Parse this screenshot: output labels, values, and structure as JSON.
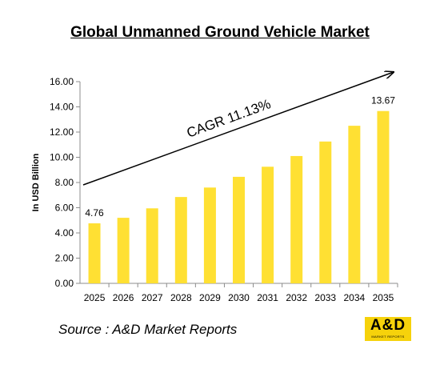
{
  "chart_data": {
    "type": "bar",
    "title": "Global Unmanned Ground Vehicle Market",
    "ylabel": "In USD Billion",
    "xlabel": "",
    "categories": [
      "2025",
      "2026",
      "2027",
      "2028",
      "2029",
      "2030",
      "2031",
      "2032",
      "2033",
      "2034",
      "2035"
    ],
    "values": [
      4.76,
      5.2,
      5.95,
      6.85,
      7.6,
      8.45,
      9.25,
      10.1,
      11.25,
      12.5,
      13.67
    ],
    "data_labels": {
      "0": "4.76",
      "10": "13.67"
    },
    "yticks": [
      "0.00",
      "2.00",
      "4.00",
      "6.00",
      "8.00",
      "10.00",
      "12.00",
      "14.00",
      "16.00"
    ],
    "ylim": [
      0,
      16
    ],
    "grid": false,
    "bar_color": "#ffe033",
    "annotation": "CAGR 11.13%"
  },
  "source": "Source : A&D Market Reports",
  "logo": {
    "main": "A&D",
    "sub": "MARKET REPORTS",
    "color": "#f6d20b"
  }
}
